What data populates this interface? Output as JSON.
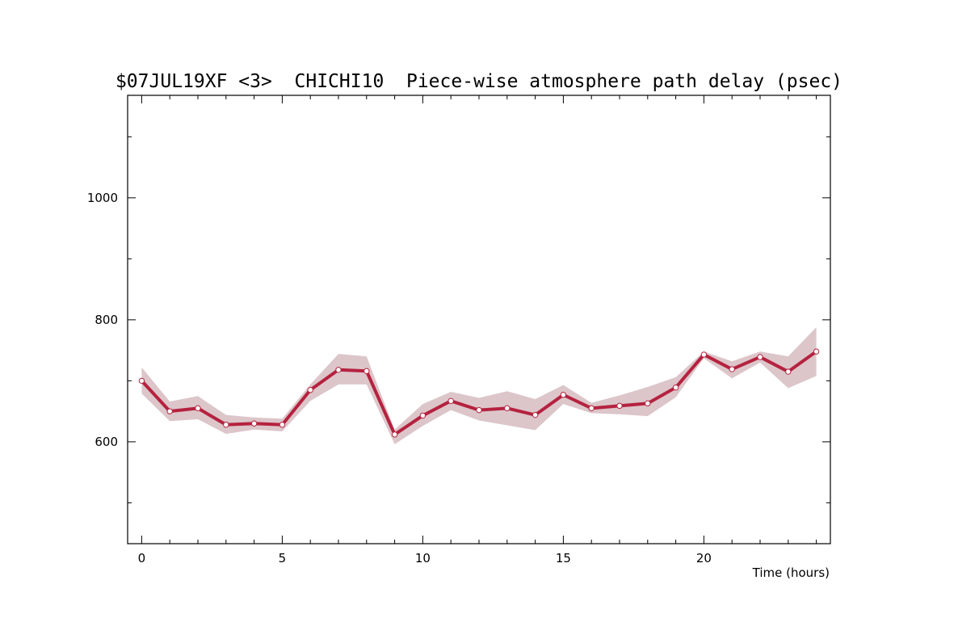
{
  "chart_data": {
    "type": "line",
    "title": "$07JUL19XF <3>  CHICHI10  Piece-wise atmosphere path delay (psec)",
    "xlabel": "Time (hours)",
    "ylabel": "",
    "xlim": [
      -0.5,
      24.5
    ],
    "ylim": [
      433,
      1168
    ],
    "x_ticks": [
      0,
      5,
      10,
      15,
      20
    ],
    "x_tick_labels": [
      "0",
      "5",
      "10",
      "15",
      "20"
    ],
    "y_ticks": [
      600,
      800,
      1000
    ],
    "y_tick_labels": [
      "600",
      "800",
      "1000"
    ],
    "y_minor_ticks": [
      500,
      700,
      900,
      1100
    ],
    "grid": false,
    "colors": {
      "line": "#b5223f",
      "band": "#dcc6ca",
      "marker_fill": "#ffffff",
      "axis": "#000000"
    },
    "series": [
      {
        "x": [
          0,
          1,
          2,
          3,
          4,
          5,
          6,
          7,
          8,
          9,
          10,
          11,
          12,
          13,
          14,
          15,
          16,
          17,
          18,
          19,
          20,
          21,
          22,
          23,
          24
        ],
        "values": [
          700,
          650,
          655,
          628,
          630,
          628,
          685,
          718,
          716,
          612,
          643,
          667,
          652,
          655,
          644,
          677,
          655,
          659,
          663,
          689,
          743,
          719,
          739,
          715,
          748
        ],
        "upper": [
          722,
          666,
          675,
          644,
          640,
          638,
          694,
          744,
          740,
          620,
          662,
          682,
          672,
          683,
          670,
          693,
          664,
          676,
          690,
          706,
          748,
          732,
          748,
          740,
          788
        ],
        "lower": [
          679,
          634,
          637,
          613,
          620,
          617,
          667,
          694,
          694,
          596,
          626,
          652,
          635,
          627,
          619,
          662,
          647,
          645,
          642,
          673,
          737,
          704,
          730,
          688,
          708
        ]
      }
    ]
  }
}
